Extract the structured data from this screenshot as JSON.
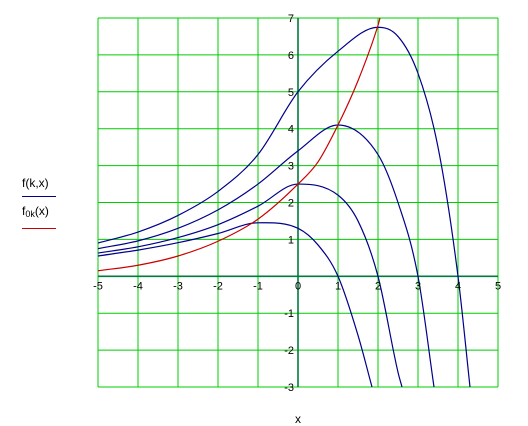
{
  "chart_data": {
    "type": "line",
    "xlabel": "x",
    "xlim": [
      -5,
      5
    ],
    "ylim": [
      -3,
      7
    ],
    "grid": true,
    "x_ticks": [
      -5,
      -4,
      -3,
      -2,
      -1,
      0,
      1,
      2,
      3,
      4,
      5
    ],
    "y_ticks": [
      -3,
      -2,
      -1,
      0,
      1,
      2,
      3,
      4,
      5,
      6,
      7
    ],
    "legend_placement": "left",
    "colors": {
      "grid": "#00cc00",
      "axis": "#007a3d",
      "series_f": "#00008b",
      "series_f0k": "#cc0000"
    },
    "legend": [
      {
        "main": "f(k,x)",
        "sub": "",
        "tail": "",
        "color": "#00008b"
      },
      {
        "main": "f",
        "sub": "0k",
        "tail": "(x)",
        "color": "#cc0000"
      }
    ],
    "series": [
      {
        "name": "f(k,x)",
        "k": 1,
        "color": "#00008b",
        "x": [
          -5,
          -4,
          -3,
          -2,
          -1,
          0,
          0.5,
          1,
          1.5,
          1.85
        ],
        "y": [
          0.55,
          0.71,
          0.91,
          1.16,
          1.45,
          1.3,
          0.85,
          0,
          -1.6,
          -3
        ]
      },
      {
        "name": "f(k,x)",
        "k": 2,
        "color": "#00008b",
        "x": [
          -5,
          -4,
          -3,
          -2,
          -1,
          0,
          1,
          1.5,
          2,
          2.5,
          2.6
        ],
        "y": [
          0.63,
          0.8,
          1.05,
          1.4,
          1.9,
          2.5,
          2.2,
          1.5,
          0,
          -2.6,
          -3
        ]
      },
      {
        "name": "f(k,x)",
        "k": 3,
        "color": "#00008b",
        "x": [
          -5,
          -4,
          -3,
          -2,
          -1,
          0,
          1,
          2,
          2.5,
          3,
          3.4
        ],
        "y": [
          0.75,
          0.96,
          1.3,
          1.8,
          2.5,
          3.4,
          4.1,
          3.3,
          2.0,
          0,
          -3
        ]
      },
      {
        "name": "f(k,x)",
        "k": 4,
        "color": "#00008b",
        "x": [
          -5,
          -4,
          -3,
          -2,
          -1,
          0,
          1,
          2,
          2.5,
          3,
          3.5,
          4,
          4.3
        ],
        "y": [
          0.9,
          1.2,
          1.65,
          2.3,
          3.3,
          5.0,
          6.1,
          6.75,
          6.5,
          5.5,
          3.5,
          0,
          -3
        ]
      },
      {
        "name": "f0k(x)",
        "color": "#cc0000",
        "x": [
          -5,
          -4,
          -3,
          -2,
          -1,
          0,
          0.5,
          1,
          1.5,
          2,
          2.05
        ],
        "y": [
          0.15,
          0.3,
          0.55,
          0.95,
          1.55,
          2.5,
          3.1,
          4.1,
          5.3,
          6.8,
          7
        ]
      }
    ]
  }
}
